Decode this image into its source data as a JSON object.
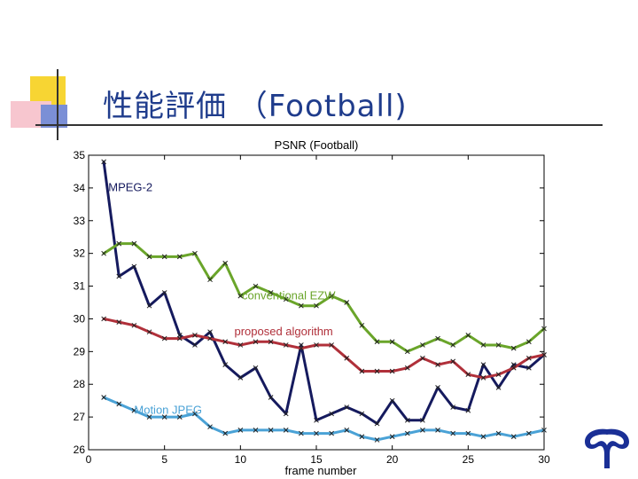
{
  "slide": {
    "title": "性能評価 （Football)"
  },
  "colors": {
    "title": "#1f3c8c",
    "mpeg2": "#151a5e",
    "ezw": "#6aa52a",
    "proposed": "#b0303a",
    "mjpeg": "#4aa2d6",
    "logo": "#1a2f96"
  },
  "chart_data": {
    "type": "line",
    "title": "PSNR (Football)",
    "xlabel": "frame number",
    "ylabel": "",
    "xlim": [
      0,
      30
    ],
    "ylim": [
      26,
      35
    ],
    "xticks": [
      0,
      5,
      10,
      15,
      20,
      25,
      30
    ],
    "yticks": [
      26,
      27,
      28,
      29,
      30,
      31,
      32,
      33,
      34,
      35
    ],
    "grid": false,
    "x": [
      1,
      2,
      3,
      4,
      5,
      6,
      7,
      8,
      9,
      10,
      11,
      12,
      13,
      14,
      15,
      16,
      17,
      18,
      19,
      20,
      21,
      22,
      23,
      24,
      25,
      26,
      27,
      28,
      29,
      30
    ],
    "series": [
      {
        "name": "MPEG-2",
        "color_key": "mpeg2",
        "values": [
          34.8,
          31.3,
          31.6,
          30.4,
          30.8,
          29.5,
          29.2,
          29.6,
          28.6,
          28.2,
          28.5,
          27.6,
          27.1,
          29.2,
          26.9,
          27.1,
          27.3,
          27.1,
          26.8,
          27.5,
          26.9,
          26.9,
          27.9,
          27.3,
          27.2,
          28.6,
          27.9,
          28.6,
          28.5,
          28.9
        ]
      },
      {
        "name": "conventional EZW",
        "color_key": "ezw",
        "values": [
          32.0,
          32.3,
          32.3,
          31.9,
          31.9,
          31.9,
          32.0,
          31.2,
          31.7,
          30.7,
          31.0,
          30.8,
          30.6,
          30.4,
          30.4,
          30.7,
          30.5,
          29.8,
          29.3,
          29.3,
          29.0,
          29.2,
          29.4,
          29.2,
          29.5,
          29.2,
          29.2,
          29.1,
          29.3,
          29.7
        ]
      },
      {
        "name": "proposed algorithm",
        "color_key": "proposed",
        "values": [
          30.0,
          29.9,
          29.8,
          29.6,
          29.4,
          29.4,
          29.5,
          29.4,
          29.3,
          29.2,
          29.3,
          29.3,
          29.2,
          29.1,
          29.2,
          29.2,
          28.8,
          28.4,
          28.4,
          28.4,
          28.5,
          28.8,
          28.6,
          28.7,
          28.3,
          28.2,
          28.3,
          28.5,
          28.8,
          28.9
        ]
      },
      {
        "name": "Motion JPEG",
        "color_key": "mjpeg",
        "values": [
          27.6,
          27.4,
          27.2,
          27.0,
          27.0,
          27.0,
          27.1,
          26.7,
          26.5,
          26.6,
          26.6,
          26.6,
          26.6,
          26.5,
          26.5,
          26.5,
          26.6,
          26.4,
          26.3,
          26.4,
          26.5,
          26.6,
          26.6,
          26.5,
          26.5,
          26.4,
          26.5,
          26.4,
          26.5,
          26.6
        ]
      }
    ],
    "annotations": [
      {
        "text": "MPEG-2",
        "series": "mpeg2",
        "x": 1.3,
        "y": 33.9
      },
      {
        "text": "conventional EZW",
        "series": "ezw",
        "x": 10.1,
        "y": 30.6
      },
      {
        "text": "proposed algorithm",
        "series": "proposed",
        "x": 9.6,
        "y": 29.5
      },
      {
        "text": "Motion JPEG",
        "series": "mjpeg",
        "x": 3.0,
        "y": 27.1
      }
    ]
  }
}
